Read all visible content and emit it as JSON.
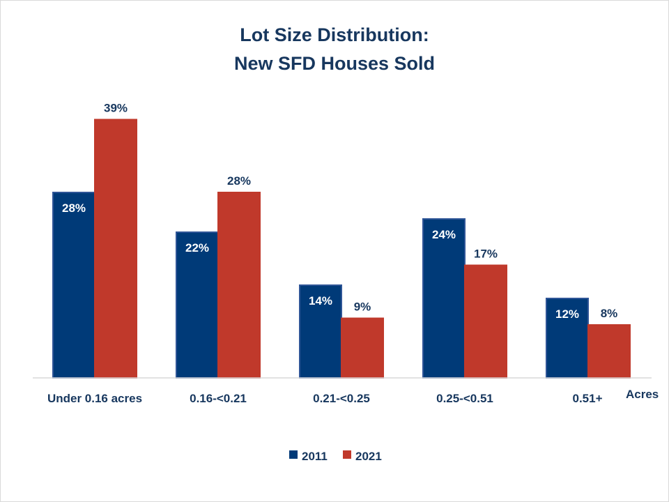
{
  "chart_data": {
    "type": "bar",
    "title_lines": [
      "Lot Size Distribution:",
      "New SFD Houses Sold"
    ],
    "categories": [
      "Under 0.16 acres",
      "0.16-<0.21",
      "0.21-<0.25",
      "0.25-<0.51",
      "0.51+"
    ],
    "x_unit_label": "Acres",
    "series": [
      {
        "name": "2011",
        "color": "#003a78",
        "border": "#2f5597",
        "label_color": "#ffffff",
        "values": [
          28,
          22,
          14,
          24,
          12
        ],
        "labels": [
          "28%",
          "22%",
          "14%",
          "24%",
          "12%"
        ]
      },
      {
        "name": "2021",
        "color": "#c0392b",
        "border": "#c0392b",
        "label_color": "#17375e",
        "values": [
          39,
          28,
          9,
          17,
          8
        ],
        "labels": [
          "39%",
          "28%",
          "9%",
          "17%",
          "8%"
        ]
      }
    ],
    "ylim": [
      0,
      40
    ],
    "grid": false,
    "legend_position": "bottom"
  }
}
